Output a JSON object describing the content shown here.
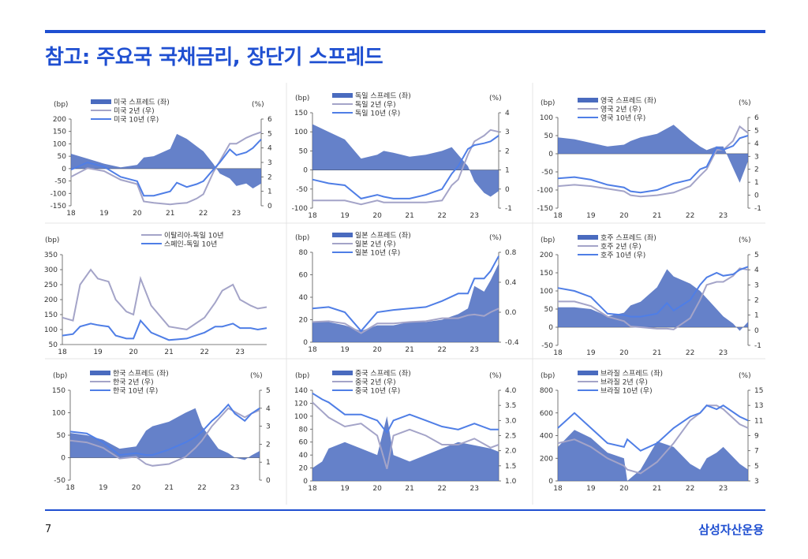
{
  "page": {
    "title": "참고: 주요국 국채금리, 장단기 스프레드",
    "page_number": "7",
    "brand": "삼성자산운용"
  },
  "colors": {
    "accent": "#1f4fd1",
    "spread": "#4a6bbf",
    "two_year": "#a4a4c8",
    "ten_year": "#4f7ee6"
  },
  "chart_data": [
    {
      "id": "us",
      "type": "bar+line",
      "left_unit": "(bp)",
      "right_unit": "(%)",
      "legend": [
        "미국 스프레드 (좌)",
        "미국 2년 (우)",
        "미국 10년 (우)"
      ],
      "x_ticks": [
        "18",
        "19",
        "20",
        "21",
        "22",
        "23"
      ],
      "y_left_ticks": [
        "200",
        "150",
        "100",
        "50",
        "0",
        "-50",
        "-100",
        "-150"
      ],
      "y_left_range": [
        -150,
        200
      ],
      "y_right_ticks": [
        "6",
        "5",
        "4",
        "3",
        "2",
        "1",
        "0"
      ],
      "y_right_range": [
        0,
        6
      ],
      "x": [
        2018.0,
        2018.5,
        2019.0,
        2019.5,
        2020.0,
        2020.2,
        2020.5,
        2021.0,
        2021.2,
        2021.5,
        2021.8,
        2022.0,
        2022.3,
        2022.5,
        2022.8,
        2023.0,
        2023.3,
        2023.5,
        2023.75
      ],
      "series": [
        {
          "name": "미국 스프레드 (좌)",
          "values": [
            60,
            40,
            20,
            5,
            15,
            45,
            50,
            80,
            140,
            120,
            90,
            70,
            20,
            -20,
            -40,
            -70,
            -60,
            -80,
            -60
          ]
        },
        {
          "name": "미국 2년 (우)",
          "values": [
            2.0,
            2.6,
            2.4,
            1.8,
            1.5,
            0.3,
            0.2,
            0.1,
            0.15,
            0.2,
            0.5,
            0.8,
            2.3,
            3.1,
            4.3,
            4.3,
            4.7,
            4.9,
            5.1
          ]
        },
        {
          "name": "미국 10년 (우)",
          "values": [
            2.5,
            3.0,
            2.7,
            2.0,
            1.7,
            0.7,
            0.7,
            1.0,
            1.6,
            1.3,
            1.5,
            1.7,
            2.5,
            3.0,
            3.9,
            3.5,
            3.7,
            4.0,
            4.6
          ]
        }
      ]
    },
    {
      "id": "de",
      "type": "bar+line",
      "left_unit": "(bp)",
      "right_unit": "(%)",
      "legend": [
        "독일 스프레드 (좌)",
        "독일 2년 (우)",
        "독일 10년 (우)"
      ],
      "x_ticks": [
        "18",
        "19",
        "20",
        "21",
        "22",
        "23"
      ],
      "y_left_ticks": [
        "150",
        "100",
        "50",
        "0",
        "-50",
        "-100"
      ],
      "y_left_range": [
        -100,
        150
      ],
      "y_right_ticks": [
        "4",
        "3",
        "2",
        "1",
        "0",
        "-1"
      ],
      "y_right_range": [
        -1,
        4
      ],
      "x": [
        2018.0,
        2018.5,
        2019.0,
        2019.5,
        2020.0,
        2020.2,
        2020.5,
        2021.0,
        2021.5,
        2022.0,
        2022.3,
        2022.5,
        2022.8,
        2023.0,
        2023.3,
        2023.5,
        2023.75
      ],
      "series": [
        {
          "name": "독일 스프레드 (좌)",
          "values": [
            120,
            100,
            80,
            30,
            40,
            50,
            45,
            35,
            40,
            50,
            60,
            40,
            10,
            -30,
            -60,
            -70,
            -55
          ]
        },
        {
          "name": "독일 2년 (우)",
          "values": [
            -0.6,
            -0.6,
            -0.6,
            -0.8,
            -0.6,
            -0.7,
            -0.7,
            -0.7,
            -0.7,
            -0.6,
            0.2,
            0.5,
            1.8,
            2.5,
            2.8,
            3.1,
            3.0
          ]
        },
        {
          "name": "독일 10년 (우)",
          "values": [
            0.5,
            0.3,
            0.2,
            -0.5,
            -0.3,
            -0.4,
            -0.5,
            -0.5,
            -0.3,
            0.0,
            0.8,
            1.2,
            2.1,
            2.3,
            2.4,
            2.5,
            2.8
          ]
        }
      ]
    },
    {
      "id": "uk",
      "type": "bar+line",
      "left_unit": "(bp)",
      "right_unit": "(%)",
      "legend": [
        "영국 스프레드 (좌)",
        "영국 2년 (우)",
        "영국 10년 (우)"
      ],
      "x_ticks": [
        "18",
        "19",
        "20",
        "21",
        "22",
        "23"
      ],
      "y_left_ticks": [
        "100",
        "50",
        "0",
        "-50",
        "-100",
        "-150"
      ],
      "y_left_range": [
        -150,
        100
      ],
      "y_right_ticks": [
        "6",
        "5",
        "4",
        "3",
        "2",
        "1",
        "0",
        "-1"
      ],
      "y_right_range": [
        -1,
        6
      ],
      "x": [
        2018.0,
        2018.5,
        2019.0,
        2019.5,
        2020.0,
        2020.2,
        2020.5,
        2021.0,
        2021.5,
        2022.0,
        2022.3,
        2022.5,
        2022.8,
        2023.0,
        2023.3,
        2023.5,
        2023.75
      ],
      "series": [
        {
          "name": "영국 스프레드 (좌)",
          "values": [
            45,
            40,
            30,
            20,
            25,
            35,
            45,
            55,
            80,
            40,
            20,
            10,
            20,
            20,
            -40,
            -80,
            -20
          ]
        },
        {
          "name": "영국 2년 (우)",
          "values": [
            0.7,
            0.8,
            0.7,
            0.5,
            0.3,
            0.0,
            -0.1,
            0.0,
            0.2,
            0.7,
            1.5,
            2.0,
            3.5,
            3.5,
            4.2,
            5.3,
            4.8
          ]
        },
        {
          "name": "영국 10년 (우)",
          "values": [
            1.3,
            1.4,
            1.2,
            0.8,
            0.6,
            0.3,
            0.2,
            0.4,
            0.9,
            1.2,
            2.0,
            2.2,
            3.7,
            3.5,
            3.8,
            4.4,
            4.6
          ]
        }
      ]
    },
    {
      "id": "spreads",
      "type": "line",
      "left_unit": "(bp)",
      "right_unit": "",
      "legend": [
        "이탈리아-독일 10년",
        "스페인-독일 10년"
      ],
      "x_ticks": [
        "18",
        "19",
        "20",
        "21",
        "22",
        "23"
      ],
      "y_left_ticks": [
        "350",
        "300",
        "250",
        "200",
        "150",
        "100",
        "50"
      ],
      "y_left_range": [
        50,
        350
      ],
      "y_right_ticks": [],
      "y_right_range": null,
      "x": [
        2018.0,
        2018.3,
        2018.5,
        2018.8,
        2019.0,
        2019.3,
        2019.5,
        2019.8,
        2020.0,
        2020.2,
        2020.5,
        2021.0,
        2021.5,
        2022.0,
        2022.3,
        2022.5,
        2022.8,
        2023.0,
        2023.3,
        2023.5,
        2023.75
      ],
      "series": [
        {
          "name": "이탈리아-독일 10년",
          "values": [
            140,
            130,
            250,
            300,
            270,
            260,
            200,
            160,
            150,
            270,
            180,
            110,
            100,
            140,
            190,
            230,
            250,
            200,
            180,
            170,
            175
          ]
        },
        {
          "name": "스페인-독일 10년",
          "values": [
            80,
            85,
            110,
            120,
            115,
            110,
            80,
            70,
            70,
            130,
            90,
            65,
            70,
            90,
            110,
            110,
            120,
            105,
            105,
            100,
            105
          ]
        }
      ]
    },
    {
      "id": "jp",
      "type": "bar+line",
      "left_unit": "(bp)",
      "right_unit": "(%)",
      "legend": [
        "일본 스프레드 (좌)",
        "일본 2년 (우)",
        "일본 10년 (우)"
      ],
      "x_ticks": [
        "18",
        "19",
        "20",
        "21",
        "22",
        "23"
      ],
      "y_left_ticks": [
        "80",
        "60",
        "40",
        "20",
        "0"
      ],
      "y_left_range": [
        0,
        80
      ],
      "y_right_ticks": [
        "0.8",
        "0.4",
        "0.0",
        "-0.4"
      ],
      "y_right_range": [
        -0.4,
        0.8
      ],
      "x": [
        2018.0,
        2018.5,
        2019.0,
        2019.5,
        2020.0,
        2020.5,
        2021.0,
        2021.5,
        2022.0,
        2022.5,
        2022.8,
        2023.0,
        2023.3,
        2023.5,
        2023.75
      ],
      "series": [
        {
          "name": "일본 스프레드 (좌)",
          "values": [
            18,
            18,
            15,
            10,
            15,
            15,
            18,
            18,
            20,
            25,
            30,
            50,
            45,
            55,
            70
          ]
        },
        {
          "name": "일본 2년 (우)",
          "values": [
            -0.13,
            -0.12,
            -0.15,
            -0.28,
            -0.15,
            -0.15,
            -0.13,
            -0.12,
            -0.08,
            -0.08,
            -0.04,
            -0.03,
            -0.05,
            0.0,
            0.05
          ]
        },
        {
          "name": "일본 10년 (우)",
          "values": [
            0.05,
            0.07,
            0.0,
            -0.25,
            0.0,
            0.03,
            0.05,
            0.07,
            0.15,
            0.25,
            0.25,
            0.45,
            0.45,
            0.55,
            0.75
          ]
        }
      ]
    },
    {
      "id": "au",
      "type": "bar+line",
      "left_unit": "(bp)",
      "right_unit": "(%)",
      "legend": [
        "호주 스프레드 (좌)",
        "호주 2년 (우)",
        "호주 10년 (우)"
      ],
      "x_ticks": [
        "18",
        "19",
        "20",
        "21",
        "22",
        "23"
      ],
      "y_left_ticks": [
        "200",
        "150",
        "100",
        "50",
        "0",
        "-50"
      ],
      "y_left_range": [
        -50,
        200
      ],
      "y_right_ticks": [
        "5",
        "4",
        "3",
        "2",
        "1",
        "0",
        "-1"
      ],
      "y_right_range": [
        -1,
        5
      ],
      "x": [
        2018.0,
        2018.5,
        2019.0,
        2019.5,
        2020.0,
        2020.2,
        2020.5,
        2021.0,
        2021.3,
        2021.5,
        2022.0,
        2022.3,
        2022.5,
        2022.8,
        2023.0,
        2023.3,
        2023.5,
        2023.75
      ],
      "series": [
        {
          "name": "호주 스프레드 (좌)",
          "values": [
            55,
            55,
            50,
            30,
            40,
            60,
            70,
            110,
            160,
            140,
            120,
            100,
            80,
            50,
            30,
            10,
            -10,
            15
          ]
        },
        {
          "name": "호주 2년 (우)",
          "values": [
            1.9,
            1.9,
            1.6,
            0.9,
            0.6,
            0.25,
            0.2,
            0.1,
            0.1,
            0.05,
            0.8,
            2.0,
            3.0,
            3.2,
            3.2,
            3.6,
            4.1,
            4.0
          ]
        },
        {
          "name": "호주 10년 (우)",
          "values": [
            2.8,
            2.6,
            2.2,
            1.1,
            1.0,
            0.9,
            0.9,
            1.1,
            1.8,
            1.3,
            2.0,
            3.0,
            3.5,
            3.8,
            3.6,
            3.7,
            4.0,
            4.2
          ]
        }
      ]
    },
    {
      "id": "kr",
      "type": "bar+line",
      "left_unit": "(bp)",
      "right_unit": "(%)",
      "legend": [
        "한국 스프레드 (좌)",
        "한국 2년 (우)",
        "한국 10년 (우)"
      ],
      "x_ticks": [
        "18",
        "19",
        "20",
        "21",
        "22",
        "23"
      ],
      "y_left_ticks": [
        "150",
        "100",
        "50",
        "0",
        "-50"
      ],
      "y_left_range": [
        -50,
        150
      ],
      "y_right_ticks": [
        "5",
        "4",
        "3",
        "2",
        "1",
        "0"
      ],
      "y_right_range": [
        0,
        5
      ],
      "x": [
        2018.0,
        2018.5,
        2019.0,
        2019.5,
        2020.0,
        2020.3,
        2020.5,
        2021.0,
        2021.5,
        2021.8,
        2022.0,
        2022.3,
        2022.5,
        2022.8,
        2023.0,
        2023.3,
        2023.5,
        2023.75
      ],
      "series": [
        {
          "name": "한국 스프레드 (좌)",
          "values": [
            55,
            50,
            40,
            20,
            25,
            60,
            70,
            80,
            100,
            110,
            70,
            40,
            20,
            10,
            0,
            -5,
            5,
            15
          ]
        },
        {
          "name": "한국 2년 (우)",
          "values": [
            2.2,
            2.1,
            1.8,
            1.2,
            1.3,
            0.9,
            0.8,
            0.9,
            1.3,
            1.8,
            2.2,
            3.0,
            3.4,
            4.0,
            3.8,
            3.5,
            3.7,
            3.9
          ]
        },
        {
          "name": "한국 10년 (우)",
          "values": [
            2.7,
            2.6,
            2.1,
            1.4,
            1.5,
            1.4,
            1.4,
            1.7,
            2.1,
            2.4,
            2.7,
            3.3,
            3.6,
            4.2,
            3.7,
            3.3,
            3.7,
            4.0
          ]
        }
      ]
    },
    {
      "id": "cn",
      "type": "bar+line",
      "left_unit": "(bp)",
      "right_unit": "(%)",
      "legend": [
        "중국 스프레드 (좌)",
        "중국 2년 (우)",
        "중국 10년 (우)"
      ],
      "x_ticks": [
        "18",
        "19",
        "20",
        "21",
        "22",
        "23"
      ],
      "y_left_ticks": [
        "140",
        "120",
        "100",
        "80",
        "60",
        "40",
        "20",
        "0"
      ],
      "y_left_range": [
        0,
        140
      ],
      "y_right_ticks": [
        "4.0",
        "3.5",
        "3.0",
        "2.5",
        "2.0",
        "1.5",
        "1.0"
      ],
      "y_right_range": [
        1.0,
        4.0
      ],
      "x": [
        2018.0,
        2018.3,
        2018.5,
        2019.0,
        2019.5,
        2020.0,
        2020.3,
        2020.5,
        2021.0,
        2021.5,
        2022.0,
        2022.5,
        2023.0,
        2023.5,
        2023.75
      ],
      "series": [
        {
          "name": "중국 스프레드 (좌)",
          "values": [
            20,
            30,
            50,
            60,
            50,
            40,
            100,
            40,
            30,
            40,
            50,
            60,
            55,
            50,
            45
          ]
        },
        {
          "name": "중국 2년 (우)",
          "values": [
            3.6,
            3.3,
            3.1,
            2.8,
            2.9,
            2.5,
            1.4,
            2.5,
            2.7,
            2.5,
            2.2,
            2.2,
            2.4,
            2.1,
            2.2
          ]
        },
        {
          "name": "중국 10년 (우)",
          "values": [
            3.9,
            3.7,
            3.6,
            3.2,
            3.2,
            3.0,
            2.6,
            3.0,
            3.2,
            3.0,
            2.8,
            2.7,
            2.9,
            2.7,
            2.7
          ]
        }
      ]
    },
    {
      "id": "br",
      "type": "bar+line",
      "left_unit": "(bp)",
      "right_unit": "(%)",
      "legend": [
        "브라질 스프레드 (좌)",
        "브라질 2년 (우)",
        "브라질 10년 (우)"
      ],
      "x_ticks": [
        "18",
        "19",
        "20",
        "21",
        "22",
        "23"
      ],
      "y_left_ticks": [
        "800",
        "600",
        "400",
        "200",
        "0"
      ],
      "y_left_range": [
        0,
        800
      ],
      "y_right_ticks": [
        "15",
        "13",
        "11",
        "9",
        "7",
        "5",
        "3"
      ],
      "y_right_range": [
        3,
        15
      ],
      "x": [
        2018.0,
        2018.5,
        2019.0,
        2019.5,
        2020.0,
        2020.1,
        2020.5,
        2021.0,
        2021.5,
        2022.0,
        2022.3,
        2022.5,
        2022.8,
        2023.0,
        2023.5,
        2023.75
      ],
      "series": [
        {
          "name": "브라질 스프레드 (좌)",
          "values": [
            300,
            450,
            380,
            250,
            200,
            0,
            100,
            350,
            300,
            150,
            100,
            200,
            250,
            300,
            150,
            100
          ]
        },
        {
          "name": "브라질 2년 (우)",
          "values": [
            8.0,
            8.5,
            7.5,
            6.0,
            5.0,
            4.5,
            4.0,
            5.5,
            8.0,
            11.0,
            12.0,
            13.0,
            13.0,
            12.5,
            10.5,
            10.0
          ]
        },
        {
          "name": "브라질 10년 (우)",
          "values": [
            10.0,
            12.0,
            10.0,
            8.0,
            7.5,
            8.5,
            7.0,
            8.0,
            10.0,
            11.5,
            12.0,
            13.0,
            12.5,
            13.0,
            11.5,
            11.0
          ]
        }
      ]
    }
  ]
}
